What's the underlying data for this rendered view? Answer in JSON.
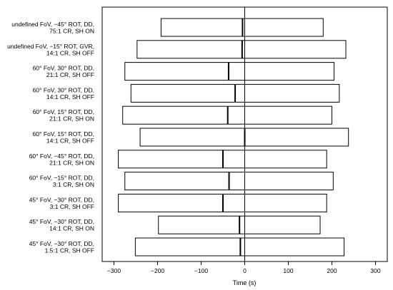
{
  "chart_data": {
    "type": "bar",
    "orientation": "horizontal",
    "title": "",
    "xlabel": "Time (s)",
    "ylabel": "",
    "xlim": [
      -300,
      300
    ],
    "xticks": [
      -300,
      -200,
      -100,
      0,
      100,
      200,
      300
    ],
    "xtick_labels": [
      "−300",
      "−200",
      "−100",
      "0",
      "100",
      "200",
      "300"
    ],
    "grid": false,
    "legend": "none",
    "colors": {
      "bar_fill": "#ffffff",
      "bar_stroke": "#000000",
      "median": "#000000",
      "zero_line": "#000000"
    },
    "categories": [
      {
        "lines": [
          "undefined FoV, −45° ROT, DD,",
          "75:1 CR, SH ON"
        ],
        "low": -192,
        "high": 180,
        "median": -5
      },
      {
        "lines": [
          "undefined FoV, −15° ROT, GVR,",
          "14:1 CR, SH OFF"
        ],
        "low": -247,
        "high": 232,
        "median": -6
      },
      {
        "lines": [
          "60° FoV, 30° ROT, DD,",
          "21:1 CR, SH OFF"
        ],
        "low": -275,
        "high": 205,
        "median": -37
      },
      {
        "lines": [
          "60° FoV, 30° ROT, DD,",
          "14:1 CR, SH OFF"
        ],
        "low": -261,
        "high": 217,
        "median": -22
      },
      {
        "lines": [
          "60° FoV, 15° ROT, DD,",
          "21:1 CR, SH ON"
        ],
        "low": -280,
        "high": 200,
        "median": -39
      },
      {
        "lines": [
          "60° FoV, 15° ROT, DD,",
          "14:1 CR, SH OFF"
        ],
        "low": -240,
        "high": 238,
        "median": 0
      },
      {
        "lines": [
          "60° FoV, −45° ROT, DD,",
          "21:1 CR, SH ON"
        ],
        "low": -290,
        "high": 188,
        "median": -50
      },
      {
        "lines": [
          "60° FoV, −15° ROT, DD,",
          "3:1 CR, SH ON"
        ],
        "low": -275,
        "high": 203,
        "median": -36
      },
      {
        "lines": [
          "45° FoV, −30° ROT, DD,",
          "3:1 CR, SH OFF"
        ],
        "low": -290,
        "high": 188,
        "median": -50
      },
      {
        "lines": [
          "45° FoV, −30° ROT, DD,",
          "14:1 CR, SH ON"
        ],
        "low": -198,
        "high": 173,
        "median": -12
      },
      {
        "lines": [
          "45° FoV, −30° ROT, DD,",
          "1.5:1 CR, SH OFF"
        ],
        "low": -251,
        "high": 228,
        "median": -10
      }
    ]
  }
}
